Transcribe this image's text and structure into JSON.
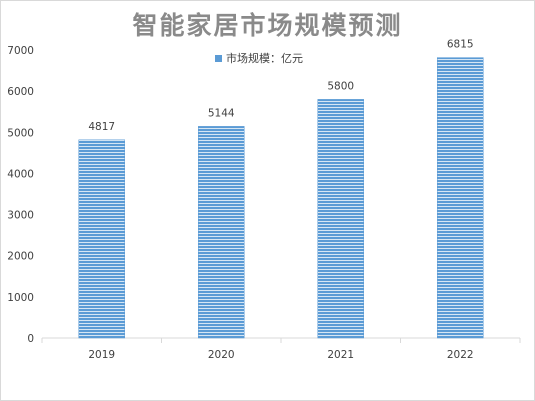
{
  "chart_data": {
    "type": "bar",
    "title": "智能家居市场规模预测",
    "categories": [
      "2019",
      "2020",
      "2021",
      "2022"
    ],
    "series": [
      {
        "name": "市场规模：亿元",
        "values": [
          4817,
          5144,
          5800,
          6815
        ]
      }
    ],
    "data_labels": [
      "4817",
      "5144",
      "5800",
      "6815"
    ],
    "y_ticks": [
      "0",
      "1000",
      "2000",
      "3000",
      "4000",
      "5000",
      "6000",
      "7000"
    ],
    "ylim": [
      0,
      7000
    ],
    "legend_position": "top",
    "grid": false,
    "bar_color": "#5b9bd5",
    "bar_stripe_color": "#ffffff"
  }
}
